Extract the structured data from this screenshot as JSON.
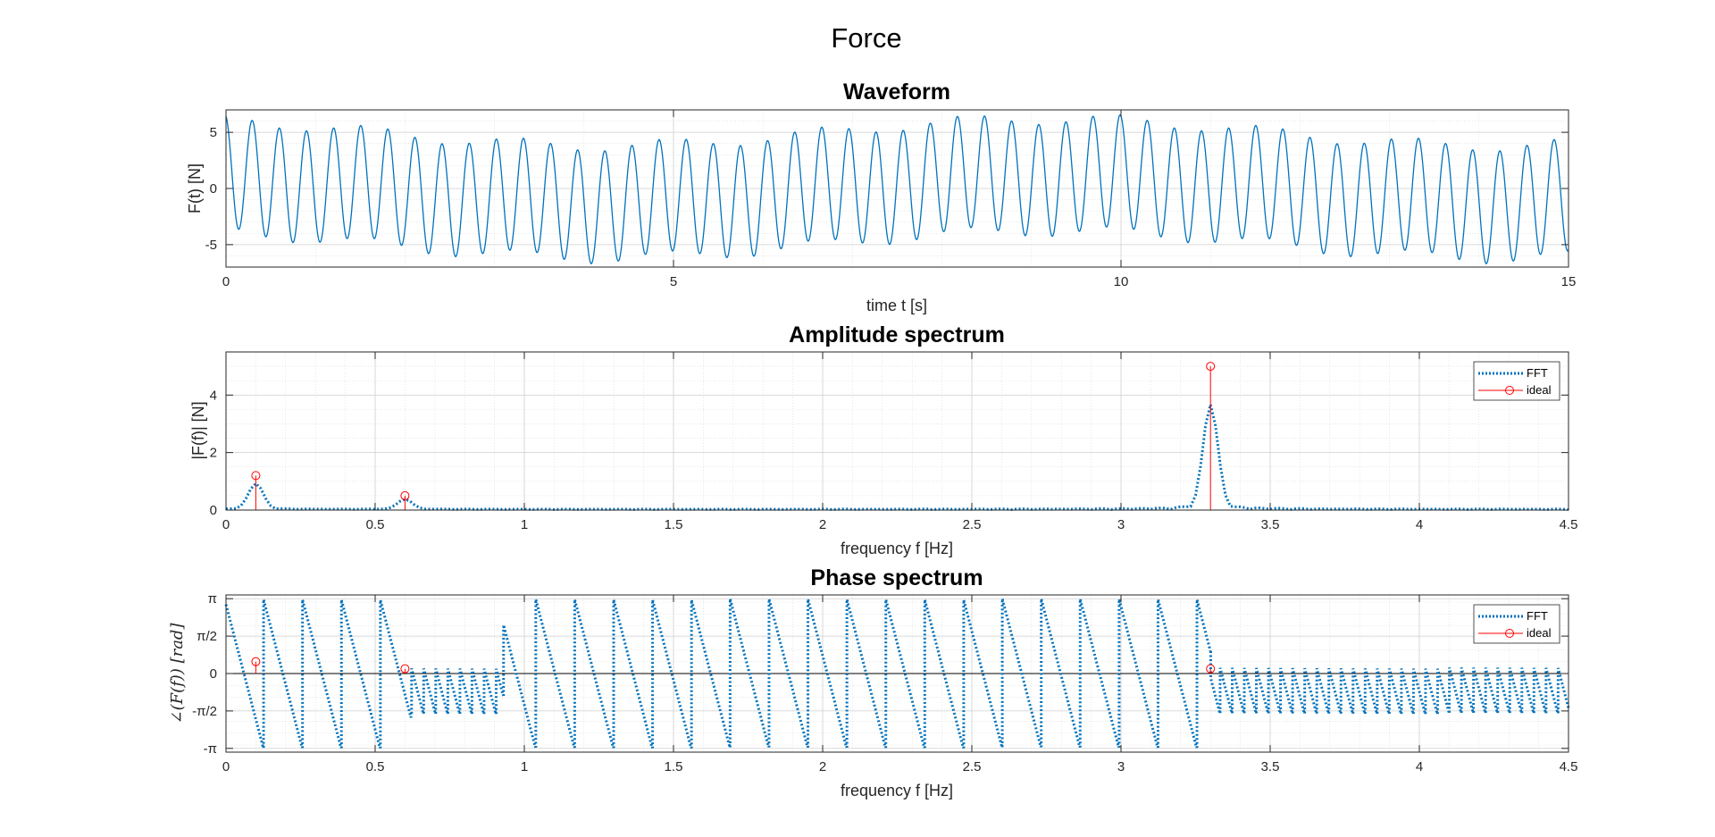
{
  "figure": {
    "title": "Force"
  },
  "chart_data": [
    {
      "type": "line",
      "title": "Waveform",
      "xlabel": "time t [s]",
      "ylabel": "F(t)   [N]",
      "xlim": [
        0,
        15
      ],
      "ylim": [
        -7,
        7
      ],
      "xticks": [
        0,
        5,
        10,
        15
      ],
      "xtick_labels": [
        "0",
        "5",
        "10",
        "15"
      ],
      "yticks": [
        -5,
        0,
        5
      ],
      "ytick_labels": [
        "-5",
        "0",
        "5"
      ],
      "grid": "on (major and minor)",
      "series": [
        {
          "style": "solid",
          "color": "#0072BD",
          "model": "sum of sinusoids: 5·cos(2π·3.3·t + 0.2) + 0.5·cos(2π·0.6·t + 0.2) + 1.2·cos(2π·0.1·t + 0.5)",
          "components": [
            {
              "freq_hz": 3.3,
              "amp_n": 5.0,
              "phase_rad": 0.2
            },
            {
              "freq_hz": 0.6,
              "amp_n": 0.5,
              "phase_rad": 0.2
            },
            {
              "freq_hz": 0.1,
              "amp_n": 1.2,
              "phase_rad": 0.5
            }
          ],
          "t_range": [
            0,
            15
          ]
        }
      ]
    },
    {
      "type": "line",
      "title": "Amplitude spectrum",
      "xlabel": "frequency f [Hz]",
      "ylabel": "|F(f)|   [N]",
      "xlim": [
        0,
        4.5
      ],
      "ylim": [
        0,
        5.5
      ],
      "xticks": [
        0,
        0.5,
        1,
        1.5,
        2,
        2.5,
        3,
        3.5,
        4,
        4.5
      ],
      "xtick_labels": [
        "0",
        "0.5",
        "1",
        "1.5",
        "2",
        "2.5",
        "3",
        "3.5",
        "4",
        "4.5"
      ],
      "yticks": [
        0,
        2,
        4
      ],
      "ytick_labels": [
        "0",
        "2",
        "4"
      ],
      "grid": "on (major and minor)",
      "legend": {
        "location": "top-right",
        "entries": [
          "FFT",
          "ideal"
        ]
      },
      "series": [
        {
          "name": "FFT",
          "style": "dotted",
          "color": "#0072BD",
          "peaks": [
            {
              "f": 0.1,
              "amp": 0.9
            },
            {
              "f": 0.6,
              "amp": 0.35
            },
            {
              "f": 3.3,
              "amp": 3.65
            }
          ],
          "f_range": [
            0,
            4.5
          ]
        },
        {
          "name": "ideal",
          "style": "stem",
          "color": "#FF0000",
          "x": [
            0.1,
            0.6,
            3.3
          ],
          "y": [
            1.2,
            0.5,
            5.0
          ]
        }
      ]
    },
    {
      "type": "line",
      "title": "Phase spectrum",
      "xlabel": "frequency f [Hz]",
      "ylabel": "∠(F(f))   [rad]",
      "xlim": [
        0,
        4.5
      ],
      "ylim": [
        -3.3,
        3.3
      ],
      "xticks": [
        0,
        0.5,
        1,
        1.5,
        2,
        2.5,
        3,
        3.5,
        4,
        4.5
      ],
      "xtick_labels": [
        "0",
        "0.5",
        "1",
        "1.5",
        "2",
        "2.5",
        "3",
        "3.5",
        "4",
        "4.5"
      ],
      "yticks": [
        -3.14159,
        -1.5708,
        0,
        1.5708,
        3.14159
      ],
      "ytick_labels": [
        "-π",
        "-π/2",
        "0",
        "π/2",
        "π"
      ],
      "grid": "on (major and minor)",
      "legend": {
        "location": "top-right",
        "entries": [
          "FFT",
          "ideal"
        ]
      },
      "series": [
        {
          "name": "FFT",
          "style": "dotted",
          "color": "#0072BD",
          "phase_slope_rad_per_hz": -48.2,
          "phase_offset_rad": 2.9,
          "full_wrap_ranges_hz": [
            [
              0,
              0.62
            ],
            [
              0.93,
              3.3
            ]
          ],
          "partial_wrap_range_hz": [
            [
              0.62,
              0.93
            ],
            [
              3.3,
              4.5
            ]
          ],
          "partial_band_rad": [
            -1.7,
            0.25
          ]
        },
        {
          "name": "ideal",
          "style": "stem",
          "color": "#FF0000",
          "x": [
            0.1,
            0.6,
            3.3
          ],
          "y": [
            0.5,
            0.2,
            0.2
          ]
        }
      ]
    }
  ]
}
